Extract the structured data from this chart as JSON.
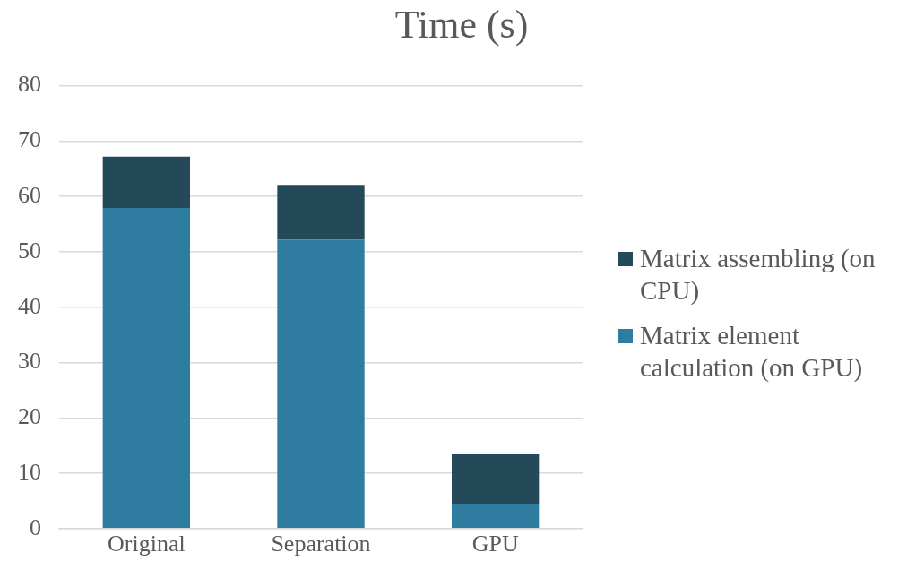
{
  "chart_data": {
    "type": "bar",
    "title": "Time (s)",
    "categories": [
      "Original",
      "Separation",
      "GPU"
    ],
    "stacked": true,
    "series": [
      {
        "name": "Matrix element calculation (on GPU)",
        "color": "#2e7ca0",
        "values": [
          57.9,
          52.2,
          4.5
        ]
      },
      {
        "name": "Matrix assembling (on CPU)",
        "color": "#244958",
        "values": [
          9.3,
          9.9,
          9.0
        ]
      }
    ],
    "ylim": [
      0,
      80
    ],
    "yticks": [
      0,
      10,
      20,
      30,
      40,
      50,
      60,
      70,
      80
    ],
    "grid": "y",
    "legend": "right"
  }
}
